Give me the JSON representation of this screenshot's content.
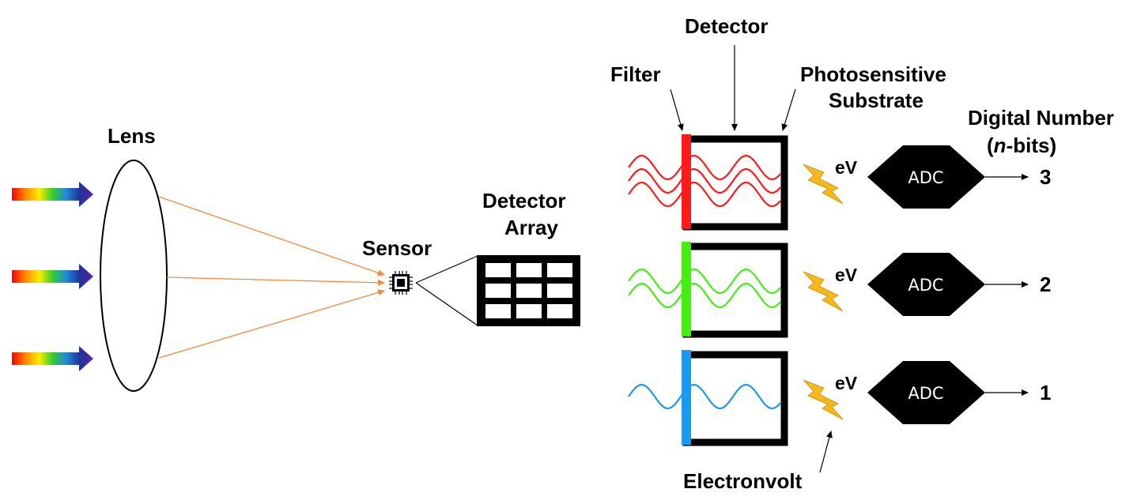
{
  "labels": {
    "lens": "Lens",
    "sensor": "Sensor",
    "detector_array_line1": "Detector",
    "detector_array_line2": "Array",
    "detector": "Detector",
    "filter": "Filter",
    "photosensitive_line1": "Photosensitive",
    "photosensitive_line2": "Substrate",
    "digital_number_line1": "Digital Number",
    "digital_number_line2_italic": "n",
    "digital_number_line2_rest": "-bits)",
    "digital_number_line2_open": "(",
    "electronvolt": "Electronvolt"
  },
  "channels": [
    {
      "color": "#ff1a1a",
      "wave_count": 3,
      "ev_label": "eV",
      "adc_label": "ADC",
      "digital_value": "3"
    },
    {
      "color": "#44ee11",
      "wave_count": 2,
      "ev_label": "eV",
      "adc_label": "ADC",
      "digital_value": "2"
    },
    {
      "color": "#1a99ee",
      "wave_count": 1,
      "ev_label": "eV",
      "adc_label": "ADC",
      "digital_value": "1"
    }
  ],
  "colors": {
    "ray": "#f08a3c",
    "bolt": "#f7b81c",
    "bolt_edge": "#c98a00",
    "arrow_spectrum": [
      "#ff0000",
      "#ff8800",
      "#ffee00",
      "#33cc33",
      "#2288dd",
      "#223399",
      "#5522aa"
    ]
  }
}
